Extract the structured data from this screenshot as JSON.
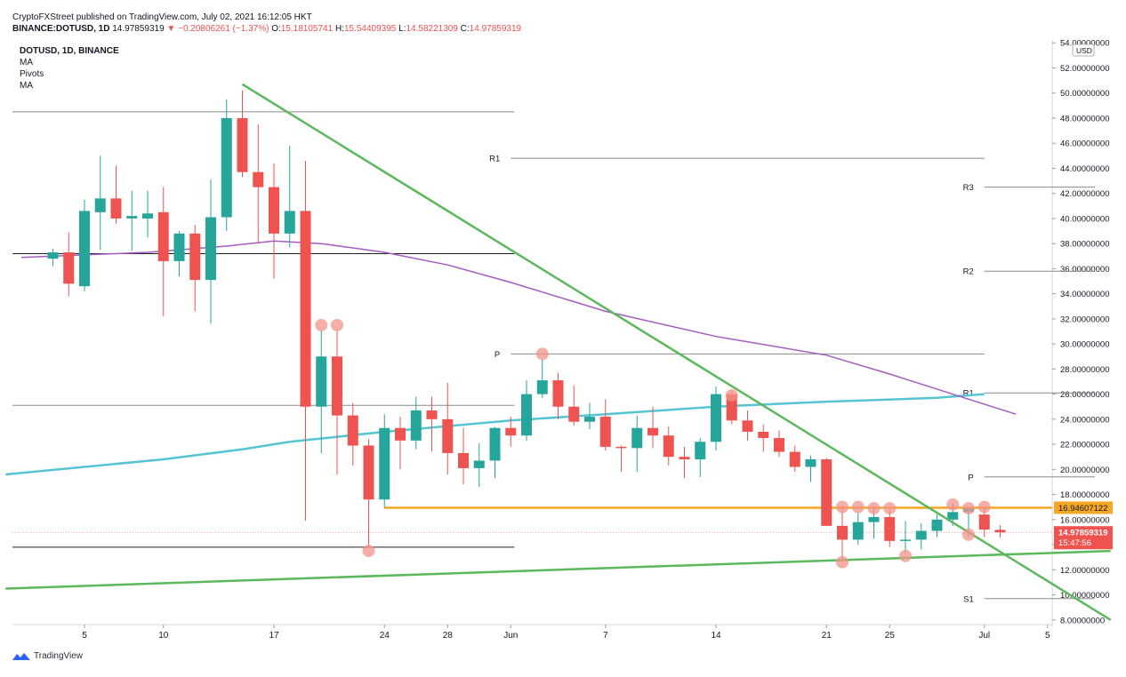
{
  "header": {
    "publisher_line": "CryptoFXStreet published on TradingView.com, July 02, 2021 16:12:05 HKT",
    "symbol": "BINANCE:DOTUSD, 1D",
    "last": "14.97859319",
    "change": "−0.20806261 (−1.37%)",
    "o_label": "O:",
    "o": "15.18105741",
    "h_label": "H:",
    "h": "15.54409395",
    "l_label": "L:",
    "l": "14.58221309",
    "c_label": "C:",
    "c": "14.97859319"
  },
  "legend": {
    "title": "DOTUSD, 1D, BINANCE",
    "items": [
      "MA",
      "Pivots",
      "MA"
    ]
  },
  "footer": {
    "brand": "TradingView"
  },
  "colors": {
    "up": "#26a69a",
    "down": "#ef5350",
    "ma_fast": "#56c5d3",
    "ma_slow": "#a55bc1",
    "trend": "#5cb85c",
    "orange": "#f5a623",
    "grid_grey": "#9e9e9e",
    "marker": "#f1948a"
  },
  "chart_data": {
    "type": "candlestick",
    "title": "DOTUSD, 1D, BINANCE",
    "currency": "USD",
    "y_range": [
      7.7,
      54.4
    ],
    "y_ticks": [
      "54.00000000",
      "52.00000000",
      "50.00000000",
      "48.00000000",
      "46.00000000",
      "44.00000000",
      "42.00000000",
      "40.00000000",
      "38.00000000",
      "36.00000000",
      "34.00000000",
      "32.00000000",
      "30.00000000",
      "28.00000000",
      "26.00000000",
      "24.00000000",
      "22.00000000",
      "20.00000000",
      "18.00000000",
      "16.00000000",
      "14.00000000",
      "12.00000000",
      "10.00000000",
      "8.00000000"
    ],
    "x_ticks": [
      {
        "label": "5",
        "date": "2021-05-05"
      },
      {
        "label": "10",
        "date": "2021-05-10"
      },
      {
        "label": "17",
        "date": "2021-05-17"
      },
      {
        "label": "24",
        "date": "2021-05-24"
      },
      {
        "label": "28",
        "date": "2021-05-28"
      },
      {
        "label": "Jun",
        "date": "2021-06-01"
      },
      {
        "label": "7",
        "date": "2021-06-07"
      },
      {
        "label": "14",
        "date": "2021-06-14"
      },
      {
        "label": "21",
        "date": "2021-06-21"
      },
      {
        "label": "25",
        "date": "2021-06-25"
      },
      {
        "label": "Jul",
        "date": "2021-07-01"
      },
      {
        "label": "5",
        "date": "2021-07-05"
      }
    ],
    "candles": [
      {
        "date": "2021-05-03",
        "o": 36.8,
        "h": 37.6,
        "l": 36.2,
        "c": 37.3
      },
      {
        "date": "2021-05-04",
        "o": 37.3,
        "h": 38.9,
        "l": 33.8,
        "c": 34.8
      },
      {
        "date": "2021-05-05",
        "o": 34.6,
        "h": 41.5,
        "l": 34.2,
        "c": 40.6
      },
      {
        "date": "2021-05-06",
        "o": 40.5,
        "h": 45.0,
        "l": 37.5,
        "c": 41.6
      },
      {
        "date": "2021-05-07",
        "o": 41.6,
        "h": 44.2,
        "l": 39.6,
        "c": 40.0
      },
      {
        "date": "2021-05-08",
        "o": 40.0,
        "h": 42.2,
        "l": 37.4,
        "c": 40.2
      },
      {
        "date": "2021-05-09",
        "o": 40.0,
        "h": 42.2,
        "l": 38.5,
        "c": 40.4
      },
      {
        "date": "2021-05-10",
        "o": 40.5,
        "h": 42.5,
        "l": 32.2,
        "c": 36.6
      },
      {
        "date": "2021-05-11",
        "o": 36.6,
        "h": 39.0,
        "l": 35.4,
        "c": 38.8
      },
      {
        "date": "2021-05-12",
        "o": 38.8,
        "h": 39.5,
        "l": 32.6,
        "c": 35.1
      },
      {
        "date": "2021-05-13",
        "o": 35.1,
        "h": 43.1,
        "l": 31.6,
        "c": 40.1
      },
      {
        "date": "2021-05-14",
        "o": 40.1,
        "h": 49.5,
        "l": 39.0,
        "c": 48.0
      },
      {
        "date": "2021-05-15",
        "o": 48.0,
        "h": 50.2,
        "l": 43.3,
        "c": 43.7
      },
      {
        "date": "2021-05-16",
        "o": 43.7,
        "h": 47.5,
        "l": 38.0,
        "c": 42.5
      },
      {
        "date": "2021-05-17",
        "o": 42.5,
        "h": 44.4,
        "l": 35.2,
        "c": 38.8
      },
      {
        "date": "2021-05-18",
        "o": 38.8,
        "h": 45.8,
        "l": 37.7,
        "c": 40.6
      },
      {
        "date": "2021-05-19",
        "o": 40.6,
        "h": 44.6,
        "l": 15.9,
        "c": 25.0
      },
      {
        "date": "2021-05-20",
        "o": 25.0,
        "h": 31.1,
        "l": 21.3,
        "c": 29.0
      },
      {
        "date": "2021-05-21",
        "o": 29.0,
        "h": 31.1,
        "l": 19.6,
        "c": 24.3
      },
      {
        "date": "2021-05-22",
        "o": 24.3,
        "h": 25.3,
        "l": 20.3,
        "c": 21.9
      },
      {
        "date": "2021-05-23",
        "o": 21.9,
        "h": 22.4,
        "l": 13.9,
        "c": 17.6
      },
      {
        "date": "2021-05-24",
        "o": 17.6,
        "h": 24.4,
        "l": 16.9,
        "c": 23.3
      },
      {
        "date": "2021-05-25",
        "o": 23.3,
        "h": 24.2,
        "l": 20.0,
        "c": 22.3
      },
      {
        "date": "2021-05-26",
        "o": 22.3,
        "h": 25.8,
        "l": 21.6,
        "c": 24.7
      },
      {
        "date": "2021-05-27",
        "o": 24.7,
        "h": 25.8,
        "l": 21.4,
        "c": 24.0
      },
      {
        "date": "2021-05-28",
        "o": 24.0,
        "h": 26.9,
        "l": 19.6,
        "c": 21.3
      },
      {
        "date": "2021-05-29",
        "o": 21.3,
        "h": 23.3,
        "l": 18.8,
        "c": 20.1
      },
      {
        "date": "2021-05-30",
        "o": 20.1,
        "h": 22.1,
        "l": 18.6,
        "c": 20.7
      },
      {
        "date": "2021-05-31",
        "o": 20.7,
        "h": 23.4,
        "l": 19.3,
        "c": 23.3
      },
      {
        "date": "2021-06-01",
        "o": 23.3,
        "h": 24.2,
        "l": 21.8,
        "c": 22.7
      },
      {
        "date": "2021-06-02",
        "o": 22.7,
        "h": 27.1,
        "l": 22.3,
        "c": 26.0
      },
      {
        "date": "2021-06-03",
        "o": 26.0,
        "h": 28.8,
        "l": 25.7,
        "c": 27.1
      },
      {
        "date": "2021-06-04",
        "o": 27.1,
        "h": 27.7,
        "l": 24.0,
        "c": 25.0
      },
      {
        "date": "2021-06-05",
        "o": 25.0,
        "h": 26.7,
        "l": 23.5,
        "c": 23.8
      },
      {
        "date": "2021-06-06",
        "o": 23.8,
        "h": 25.3,
        "l": 23.2,
        "c": 24.2
      },
      {
        "date": "2021-06-07",
        "o": 24.2,
        "h": 25.6,
        "l": 21.5,
        "c": 21.8
      },
      {
        "date": "2021-06-08",
        "o": 21.8,
        "h": 21.9,
        "l": 19.8,
        "c": 21.7
      },
      {
        "date": "2021-06-09",
        "o": 21.7,
        "h": 24.3,
        "l": 19.8,
        "c": 23.3
      },
      {
        "date": "2021-06-10",
        "o": 23.3,
        "h": 25.0,
        "l": 21.7,
        "c": 22.7
      },
      {
        "date": "2021-06-11",
        "o": 22.7,
        "h": 23.4,
        "l": 20.3,
        "c": 21.0
      },
      {
        "date": "2021-06-12",
        "o": 21.0,
        "h": 21.8,
        "l": 19.3,
        "c": 20.8
      },
      {
        "date": "2021-06-13",
        "o": 20.8,
        "h": 22.5,
        "l": 19.4,
        "c": 22.2
      },
      {
        "date": "2021-06-14",
        "o": 22.2,
        "h": 26.6,
        "l": 21.5,
        "c": 26.0
      },
      {
        "date": "2021-06-15",
        "o": 26.0,
        "h": 26.3,
        "l": 23.6,
        "c": 23.9
      },
      {
        "date": "2021-06-16",
        "o": 23.9,
        "h": 24.7,
        "l": 22.3,
        "c": 23.0
      },
      {
        "date": "2021-06-17",
        "o": 23.0,
        "h": 23.6,
        "l": 21.4,
        "c": 22.5
      },
      {
        "date": "2021-06-18",
        "o": 22.5,
        "h": 23.1,
        "l": 21.0,
        "c": 21.4
      },
      {
        "date": "2021-06-19",
        "o": 21.4,
        "h": 21.9,
        "l": 19.8,
        "c": 20.2
      },
      {
        "date": "2021-06-20",
        "o": 20.2,
        "h": 21.1,
        "l": 19.0,
        "c": 20.8
      },
      {
        "date": "2021-06-21",
        "o": 20.8,
        "h": 20.9,
        "l": 15.5,
        "c": 15.5
      },
      {
        "date": "2021-06-22",
        "o": 15.5,
        "h": 17.1,
        "l": 12.7,
        "c": 14.4
      },
      {
        "date": "2021-06-23",
        "o": 14.4,
        "h": 16.6,
        "l": 14.0,
        "c": 15.8
      },
      {
        "date": "2021-06-24",
        "o": 15.8,
        "h": 17.0,
        "l": 14.5,
        "c": 16.2
      },
      {
        "date": "2021-06-25",
        "o": 16.2,
        "h": 16.8,
        "l": 13.8,
        "c": 14.3
      },
      {
        "date": "2021-06-26",
        "o": 14.3,
        "h": 15.9,
        "l": 13.3,
        "c": 14.4
      },
      {
        "date": "2021-06-27",
        "o": 14.4,
        "h": 15.7,
        "l": 13.6,
        "c": 15.1
      },
      {
        "date": "2021-06-28",
        "o": 15.1,
        "h": 16.4,
        "l": 14.6,
        "c": 16.0
      },
      {
        "date": "2021-06-29",
        "o": 16.0,
        "h": 17.3,
        "l": 15.5,
        "c": 16.6
      },
      {
        "date": "2021-06-30",
        "o": 16.6,
        "h": 16.9,
        "l": 14.6,
        "c": 16.9
      },
      {
        "date": "2021-07-01",
        "o": 16.4,
        "h": 17.0,
        "l": 14.6,
        "c": 15.2
      },
      {
        "date": "2021-07-02",
        "o": 15.18,
        "h": 15.54,
        "l": 14.58,
        "c": 14.98
      }
    ],
    "ma_fast": [
      {
        "date": "2021-04-30",
        "v": 19.6
      },
      {
        "date": "2021-05-10",
        "v": 20.8
      },
      {
        "date": "2021-05-15",
        "v": 21.6
      },
      {
        "date": "2021-05-18",
        "v": 22.2
      },
      {
        "date": "2021-05-24",
        "v": 23.0
      },
      {
        "date": "2021-06-01",
        "v": 23.9
      },
      {
        "date": "2021-06-07",
        "v": 24.4
      },
      {
        "date": "2021-06-14",
        "v": 25.0
      },
      {
        "date": "2021-06-21",
        "v": 25.4
      },
      {
        "date": "2021-06-28",
        "v": 25.7
      },
      {
        "date": "2021-07-01",
        "v": 26.0
      }
    ],
    "ma_slow": [
      {
        "date": "2021-05-01",
        "v": 36.9
      },
      {
        "date": "2021-05-09",
        "v": 37.3
      },
      {
        "date": "2021-05-14",
        "v": 37.8
      },
      {
        "date": "2021-05-17",
        "v": 38.2
      },
      {
        "date": "2021-05-20",
        "v": 38.0
      },
      {
        "date": "2021-05-24",
        "v": 37.3
      },
      {
        "date": "2021-05-28",
        "v": 36.3
      },
      {
        "date": "2021-06-01",
        "v": 34.9
      },
      {
        "date": "2021-06-07",
        "v": 32.6
      },
      {
        "date": "2021-06-14",
        "v": 30.6
      },
      {
        "date": "2021-06-21",
        "v": 29.1
      },
      {
        "date": "2021-06-25",
        "v": 27.6
      },
      {
        "date": "2021-06-30",
        "v": 25.6
      },
      {
        "date": "2021-07-03",
        "v": 24.4
      }
    ],
    "trendlines": [
      {
        "name": "down",
        "from": {
          "date": "2021-05-15",
          "v": 50.7
        },
        "to": {
          "date": "2021-07-09",
          "v": 8.0
        }
      },
      {
        "name": "up",
        "from": {
          "date": "2021-04-30",
          "v": 10.5
        },
        "to": {
          "date": "2021-07-09",
          "v": 13.5
        }
      }
    ],
    "horizontal_lines": [
      {
        "name": "grey-high",
        "value": 48.5,
        "from": "2021-04-30",
        "to": "2021-06-01",
        "color": "grey"
      },
      {
        "name": "black-mid",
        "value": 37.2,
        "from": "2021-04-30",
        "to": "2021-06-01",
        "color": "black"
      },
      {
        "name": "grey-low",
        "value": 25.1,
        "from": "2021-04-30",
        "to": "2021-06-01",
        "color": "grey"
      },
      {
        "name": "black-low",
        "value": 13.8,
        "from": "2021-04-30",
        "to": "2021-06-01",
        "color": "black"
      }
    ],
    "pivots": [
      {
        "label": "R1",
        "value": 44.8,
        "from": "2021-06-01",
        "to": "2021-07-01"
      },
      {
        "label": "P",
        "value": 29.2,
        "from": "2021-06-01",
        "to": "2021-07-01"
      },
      {
        "label": "R3",
        "value": 42.5,
        "from": "2021-07-01",
        "to": "2021-07-08"
      },
      {
        "label": "R2",
        "value": 35.8,
        "from": "2021-07-01",
        "to": "2021-07-08"
      },
      {
        "label": "R1",
        "value": 26.1,
        "from": "2021-07-01",
        "to": "2021-07-08"
      },
      {
        "label": "P",
        "value": 19.4,
        "from": "2021-07-01",
        "to": "2021-07-08"
      },
      {
        "label": "S1",
        "value": 9.7,
        "from": "2021-07-01",
        "to": "2021-07-08"
      }
    ],
    "support_line": {
      "value": 16.94607122,
      "label": "16.94607122",
      "from": "2021-05-24",
      "to": "2021-07-08"
    },
    "last_price": {
      "value": 14.97859319,
      "label": "14.97859319",
      "countdown": "15:47:56"
    },
    "markers": [
      {
        "date": "2021-05-20",
        "v": 31.5
      },
      {
        "date": "2021-05-21",
        "v": 31.5
      },
      {
        "date": "2021-05-23",
        "v": 13.5
      },
      {
        "date": "2021-06-03",
        "v": 29.2
      },
      {
        "date": "2021-06-15",
        "v": 25.9
      },
      {
        "date": "2021-06-22",
        "v": 17.0
      },
      {
        "date": "2021-06-23",
        "v": 17.0
      },
      {
        "date": "2021-06-24",
        "v": 16.9
      },
      {
        "date": "2021-06-25",
        "v": 16.9
      },
      {
        "date": "2021-06-22",
        "v": 12.6
      },
      {
        "date": "2021-06-26",
        "v": 13.1
      },
      {
        "date": "2021-06-29",
        "v": 17.2
      },
      {
        "date": "2021-06-30",
        "v": 16.9
      },
      {
        "date": "2021-07-01",
        "v": 17.0
      },
      {
        "date": "2021-06-30",
        "v": 14.8
      }
    ]
  }
}
